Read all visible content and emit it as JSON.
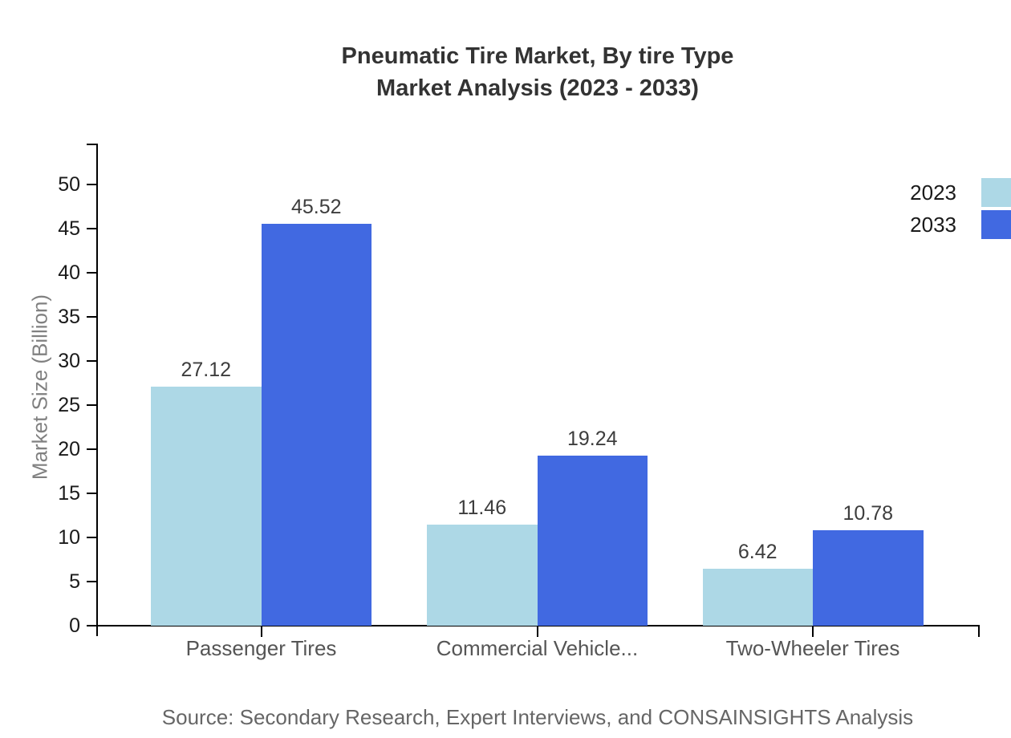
{
  "title": {
    "line1": "Pneumatic Tire Market, By tire Type",
    "line2": "Market Analysis (2023 - 2033)"
  },
  "source": "Source: Secondary Research, Expert Interviews, and CONSAINSIGHTS Analysis",
  "colors": {
    "series_2023": "#ADD8E6",
    "series_2033": "#4169E1",
    "axis": "#000000",
    "title_text": "#333333",
    "tick_text": "#1a1a1a",
    "value_text": "#3d3d3d",
    "category_text": "#555555",
    "axis_label_text": "#808080",
    "source_text": "#666666"
  },
  "chart_data": {
    "type": "bar",
    "title": "Pneumatic Tire Market, By tire Type Market Analysis (2023 - 2033)",
    "categories": [
      "Passenger Tires",
      "Commercial Vehicle...",
      "Two-Wheeler Tires"
    ],
    "series": [
      {
        "name": "2023",
        "color": "#ADD8E6",
        "values": [
          27.12,
          11.46,
          6.42
        ]
      },
      {
        "name": "2033",
        "color": "#4169E1",
        "values": [
          45.52,
          19.24,
          10.78
        ]
      }
    ],
    "xlabel": "",
    "ylabel": "Market Size (Billion)",
    "ylim": [
      0,
      50
    ],
    "yticks": [
      0,
      5,
      10,
      15,
      20,
      25,
      30,
      35,
      40,
      45,
      50
    ],
    "grid": false,
    "legend_position": "top-right",
    "value_labels": true
  }
}
